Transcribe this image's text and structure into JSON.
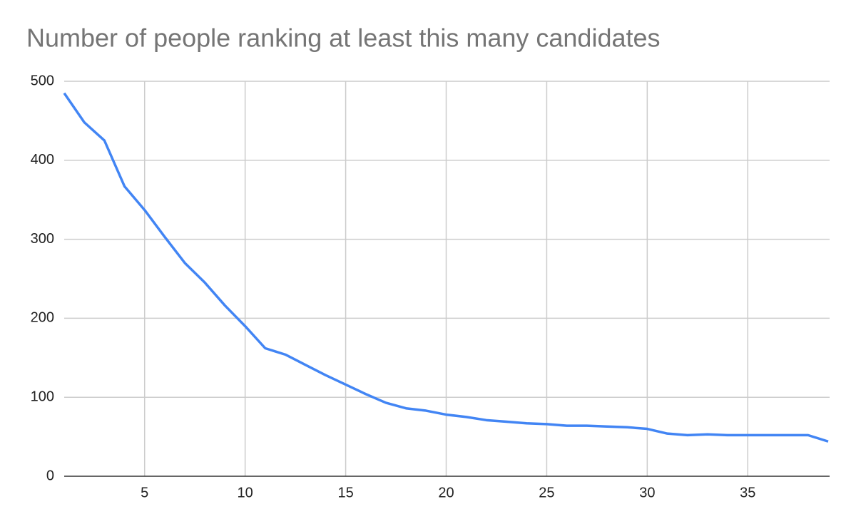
{
  "chart_data": {
    "type": "line",
    "title": "Number of people ranking at least this many candidates",
    "x": [
      1,
      2,
      3,
      4,
      5,
      6,
      7,
      8,
      9,
      10,
      11,
      12,
      13,
      14,
      15,
      16,
      17,
      18,
      19,
      20,
      21,
      22,
      23,
      24,
      25,
      26,
      27,
      28,
      29,
      30,
      31,
      32,
      33,
      34,
      35,
      36,
      37,
      38,
      39
    ],
    "series": [
      {
        "color": "#4285f4",
        "values": [
          485,
          448,
          425,
          367,
          337,
          303,
          270,
          245,
          216,
          190,
          162,
          154,
          141,
          128,
          116,
          104,
          93,
          86,
          83,
          78,
          75,
          71,
          69,
          67,
          66,
          64,
          64,
          63,
          62,
          60,
          54,
          52,
          53,
          52,
          52,
          52,
          52,
          52,
          44
        ]
      }
    ],
    "xlim": [
      1,
      39
    ],
    "xticks": [
      5,
      10,
      15,
      20,
      25,
      30,
      35
    ],
    "ylim": [
      0,
      500
    ],
    "yticks": [
      0,
      100,
      200,
      300,
      400,
      500
    ],
    "grid": true
  }
}
